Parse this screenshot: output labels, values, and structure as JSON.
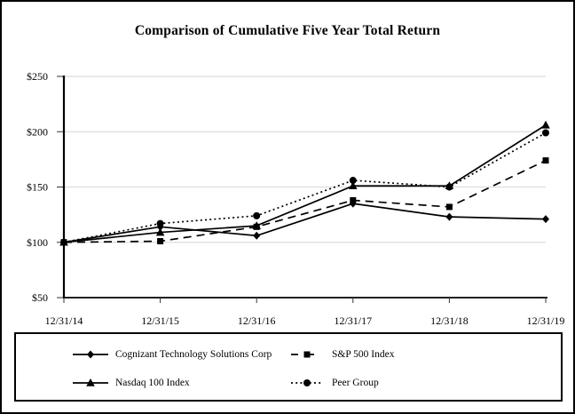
{
  "colors": {
    "series": "#000000",
    "gridline": "#dddddd",
    "tick": "#333333",
    "axis": "#000000",
    "background": "#ffffff",
    "border": "#000000"
  },
  "chart_data": {
    "type": "line",
    "title": "Comparison of Cumulative Five Year Total Return",
    "xlabel": "",
    "ylabel": "",
    "categories": [
      "12/31/14",
      "12/31/15",
      "12/31/16",
      "12/31/17",
      "12/31/18",
      "12/31/19"
    ],
    "ylim": [
      50,
      250
    ],
    "y_tick_values": [
      50,
      100,
      150,
      200,
      250
    ],
    "y_tick_labels": [
      "$50",
      "$100",
      "$150",
      "$200",
      "$250"
    ],
    "grid": "horizontal",
    "legend_position": "bottom-box",
    "series": [
      {
        "name": "Cognizant Technology Solutions Corp",
        "marker": "diamond",
        "line_style": "solid",
        "color": "#000000",
        "values": [
          100,
          114,
          106,
          135,
          123,
          121
        ]
      },
      {
        "name": "S&P 500 Index",
        "marker": "square",
        "line_style": "dashed",
        "color": "#000000",
        "values": [
          100,
          101,
          114,
          138,
          132,
          174
        ]
      },
      {
        "name": "Nasdaq 100 Index",
        "marker": "triangle",
        "line_style": "solid",
        "color": "#000000",
        "values": [
          100,
          109,
          115,
          151,
          151,
          206
        ]
      },
      {
        "name": "Peer Group",
        "marker": "circle",
        "line_style": "dotted",
        "color": "#000000",
        "values": [
          100,
          117,
          124,
          156,
          150,
          199
        ]
      }
    ]
  }
}
